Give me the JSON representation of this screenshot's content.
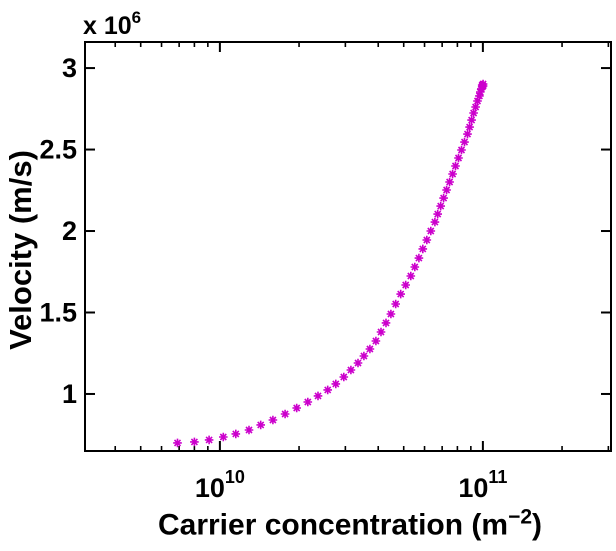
{
  "figure": {
    "background": "#ffffff",
    "axis_color": "#000000",
    "ylabel": "Velocity (m/s)",
    "xlabel_base": "Carrier concentration (m",
    "xlabel_sup": "−2",
    "xlabel_close": ")",
    "y_multiplier_base": "x 10",
    "y_multiplier_exp": "6"
  },
  "chart_data": {
    "type": "scatter",
    "marker": "asterisk",
    "marker_color": "#CC00CC",
    "x_scale": "log",
    "grid": false,
    "legend": null,
    "title": "",
    "xlabel": "Carrier concentration (m^-2)",
    "ylabel": "Velocity (m/s)",
    "xlim": [
      3070000000.0,
      307000000000.0
    ],
    "ylim": [
      650000,
      3160000
    ],
    "x_major_ticks": [
      {
        "value": 10000000000.0,
        "base": "10",
        "exp": "10"
      },
      {
        "value": 100000000000.0,
        "base": "10",
        "exp": "11"
      }
    ],
    "x_minor_ticks": [
      4000000000.0,
      5000000000.0,
      6000000000.0,
      7000000000.0,
      8000000000.0,
      9000000000.0,
      20000000000.0,
      30000000000.0,
      40000000000.0,
      50000000000.0,
      60000000000.0,
      70000000000.0,
      80000000000.0,
      90000000000.0,
      200000000000.0,
      300000000000.0
    ],
    "y_major_ticks": [
      {
        "value": 1000000,
        "label": "1"
      },
      {
        "value": 1500000,
        "label": "1.5"
      },
      {
        "value": 2000000,
        "label": "2"
      },
      {
        "value": 2500000,
        "label": "2.5"
      },
      {
        "value": 3000000,
        "label": "3"
      }
    ],
    "series": [
      {
        "name": "velocity-vs-carrier-concentration",
        "x": [
          6900000000.0,
          8000000000.0,
          9100000000.0,
          10300000000.0,
          11500000000.0,
          12900000000.0,
          14300000000.0,
          15900000000.0,
          17700000000.0,
          19600000000.0,
          21600000000.0,
          23600000000.0,
          25700000000.0,
          27600000000.0,
          29600000000.0,
          31500000000.0,
          33500000000.0,
          35300000000.0,
          37200000000.0,
          39200000000.0,
          41000000000.0,
          42800000000.0,
          44700000000.0,
          46600000000.0,
          48700000000.0,
          50900000000.0,
          53200000000.0,
          55100000000.0,
          57100000000.0,
          59100000000.0,
          61200000000.0,
          63400000000.0,
          65700000000.0,
          67300000000.0,
          69100000000.0,
          70900000000.0,
          72800000000.0,
          74700000000.0,
          76700000000.0,
          78700000000.0,
          80800000000.0,
          82900000000.0,
          85100000000.0,
          87400000000.0,
          89000000000.0,
          90600000000.0,
          92200000000.0,
          93800000000.0,
          95400000000.0,
          97000000000.0,
          97800000000.0,
          98600000000.0,
          99400000000.0,
          99400000000.0,
          100200000000.0,
          100200000000.0
        ],
        "y": [
          700000,
          706000,
          718000,
          736000,
          755000,
          779000,
          810000,
          840000,
          877000,
          914000,
          951000,
          988000,
          1025000,
          1062000,
          1104000,
          1147000,
          1190000,
          1233000,
          1276000,
          1325000,
          1380000,
          1436000,
          1491000,
          1552000,
          1613000,
          1669000,
          1724000,
          1779000,
          1834000,
          1890000,
          1945000,
          2000000,
          2055000,
          2104000,
          2153000,
          2202000,
          2252000,
          2301000,
          2350000,
          2399000,
          2448000,
          2497000,
          2546000,
          2595000,
          2638000,
          2681000,
          2724000,
          2761000,
          2798000,
          2829000,
          2853000,
          2872000,
          2884000,
          2896000,
          2902000,
          2890000
        ]
      }
    ]
  }
}
